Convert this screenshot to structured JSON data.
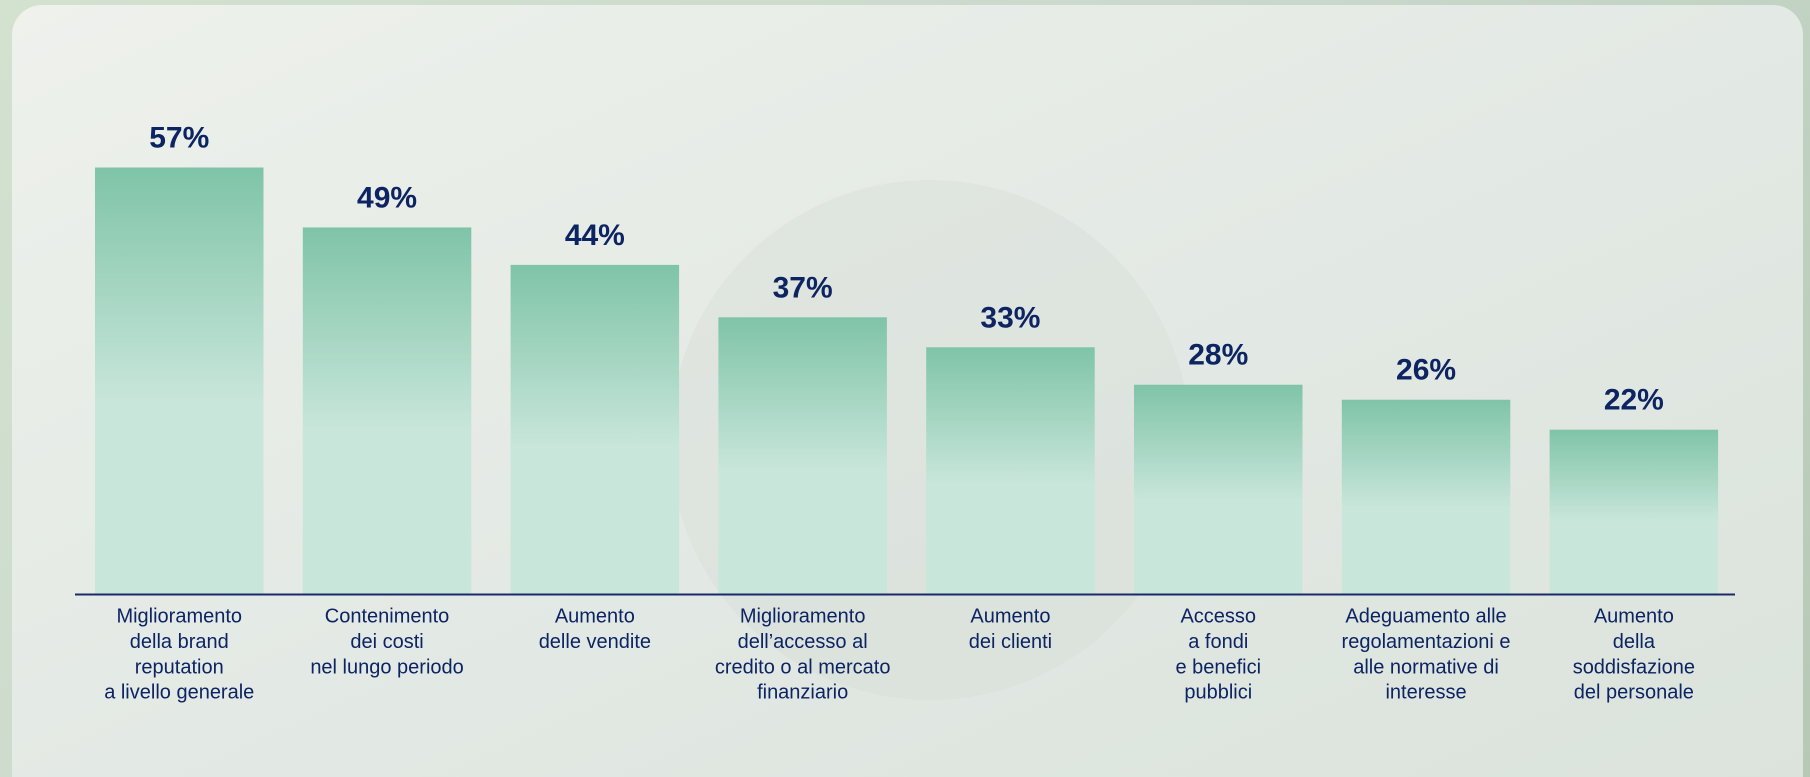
{
  "chart_data": {
    "type": "bar",
    "categories": [
      "Miglioramento\ndella brand\nreputation\na livello generale",
      "Contenimento\ndei costi\nnel lungo periodo",
      "Aumento\ndelle vendite",
      "Miglioramento\ndell’accesso al\ncredito o al mercato\nfinanziario",
      "Aumento\ndei clienti",
      "Accesso\na fondi\ne benefici\npubblici",
      "Adeguamento alle\nregolamentazioni e\nalle normative di\ninteresse",
      "Aumento\ndella\nsoddisfazione\ndel personale"
    ],
    "values": [
      57,
      49,
      44,
      37,
      33,
      28,
      26,
      22
    ],
    "value_labels": [
      "57%",
      "49%",
      "44%",
      "37%",
      "33%",
      "28%",
      "26%",
      "22%"
    ],
    "color": "#7fc4a8"
  }
}
